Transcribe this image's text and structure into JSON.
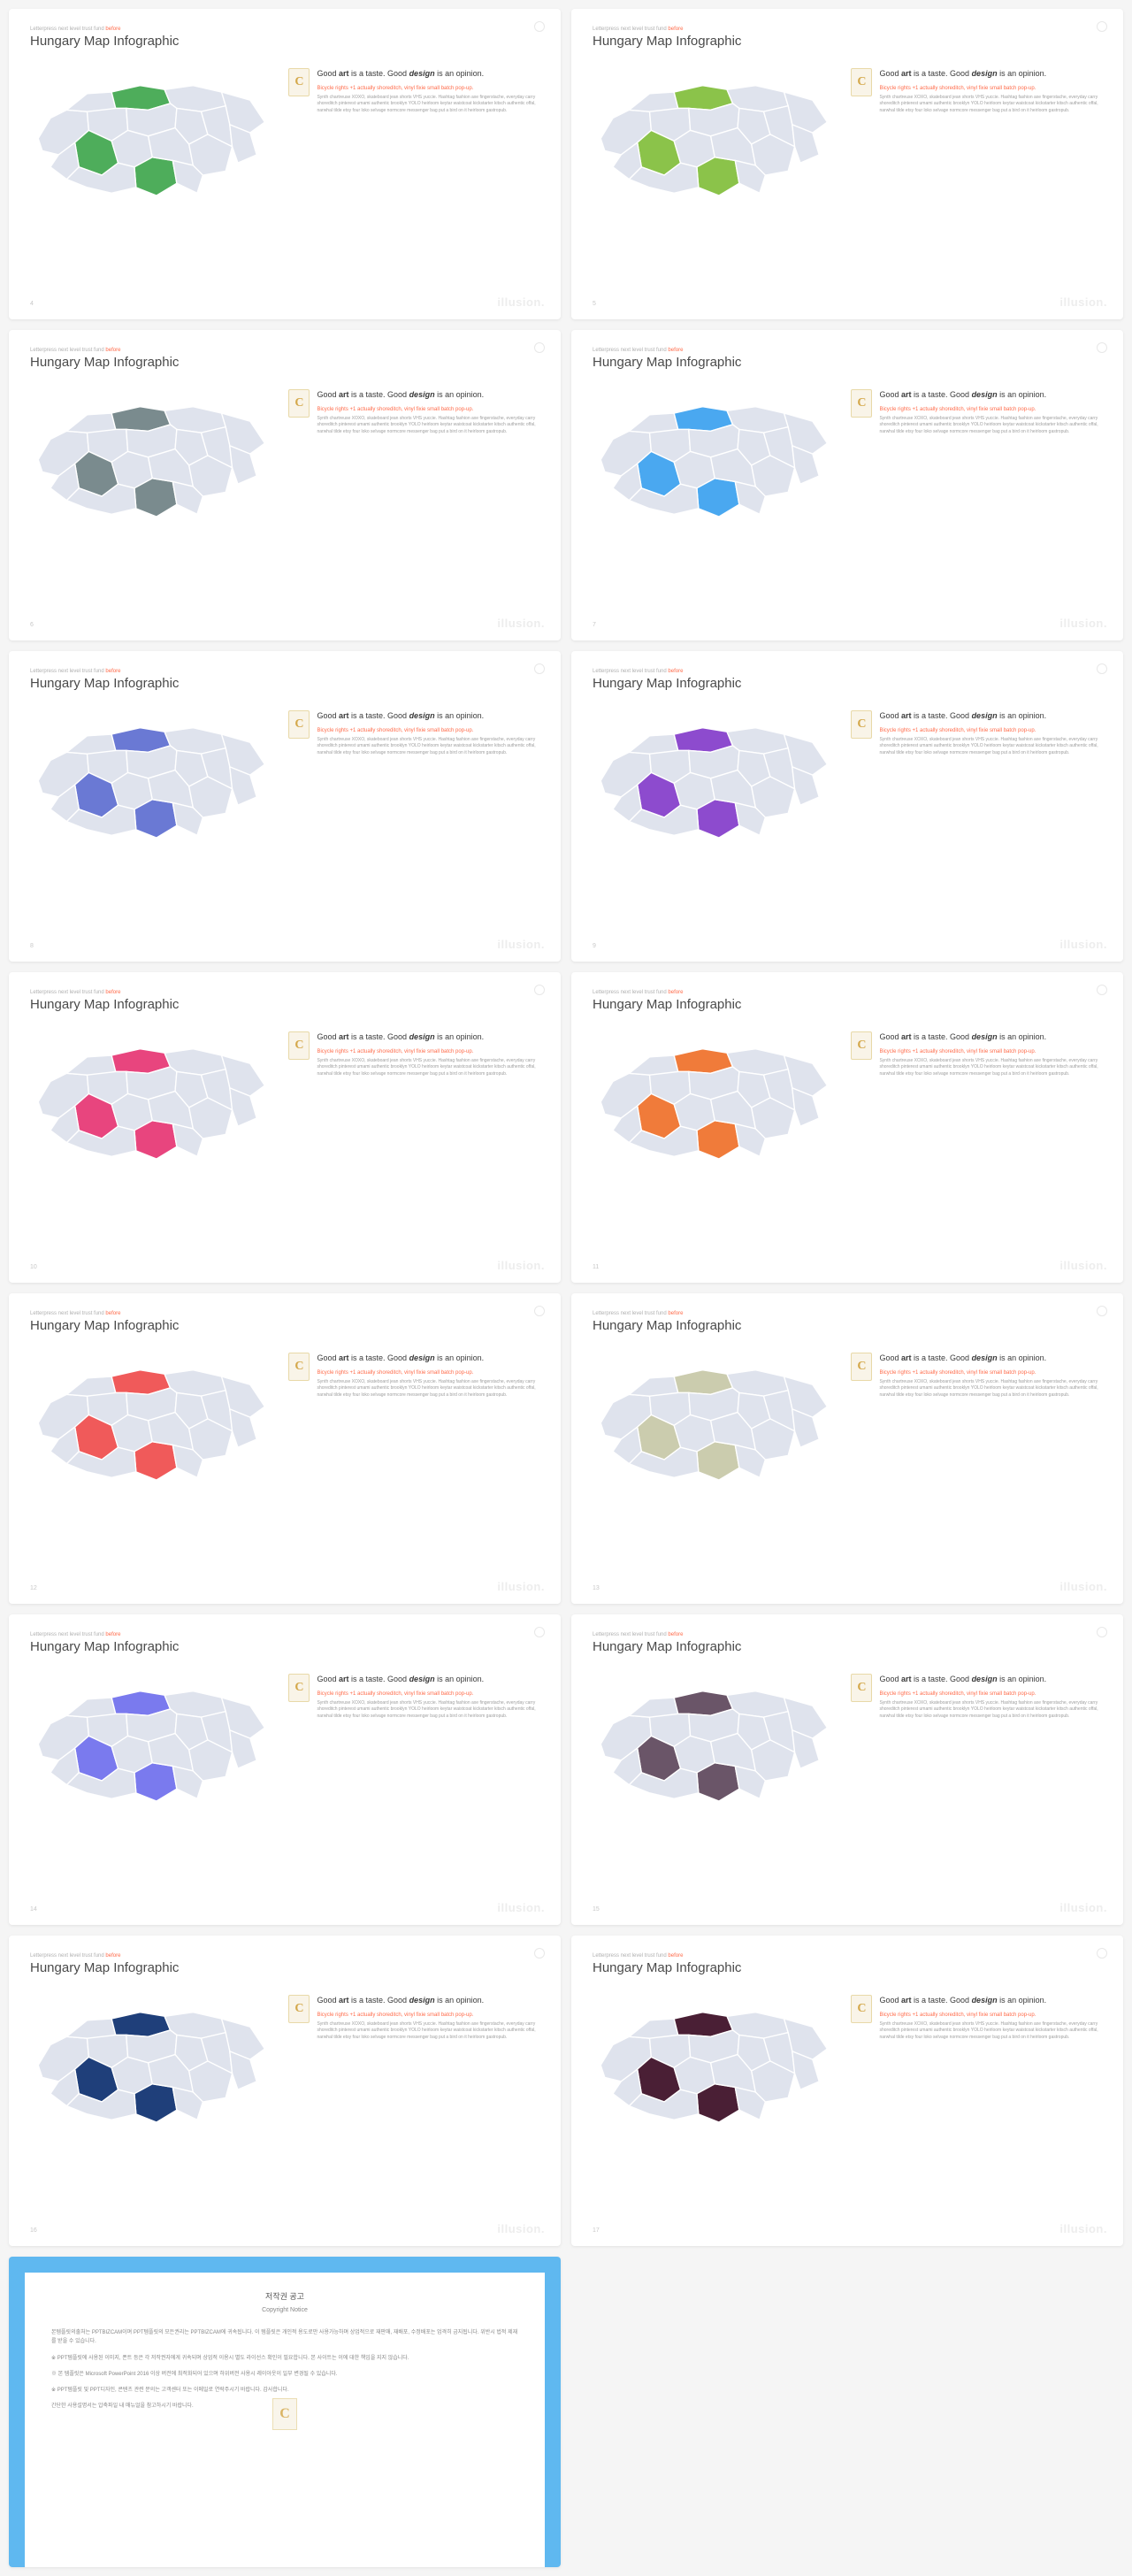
{
  "common": {
    "pretitle_plain": "Letterpress next level trust fund ",
    "pretitle_accent": "before",
    "title": "Hungary Map Infographic",
    "badge": "C",
    "headline_html": "Good <b>art</b> is a taste. Good <i>design</i> is an opinion.",
    "subhead": "Bicycle rights +1 actually shoreditch, vinyl fixie small batch pop-up.",
    "bodytext": "Synth chartreuse XOXO, skateboard jean shorts VHS yuccie. Hashtag fashion axe fingerstache, everyday carry shoreditch pinterest umami authentic brooklyn YOLO heirloom keytar waistcoat kickstarter kitsch authentic offal, narwhal tilde etsy four loko selvage normcore messenger bag put a bird on it heirloom gastropub.",
    "watermark": "illusion.",
    "base_fill": "#dfe3ed"
  },
  "slides": [
    {
      "page": "4",
      "highlight": "#4ead5b"
    },
    {
      "page": "5",
      "highlight": "#8bc34a"
    },
    {
      "page": "6",
      "highlight": "#7a8b8e"
    },
    {
      "page": "7",
      "highlight": "#4aa8f0"
    },
    {
      "page": "8",
      "highlight": "#6a79d4"
    },
    {
      "page": "9",
      "highlight": "#8d4bce"
    },
    {
      "page": "10",
      "highlight": "#e8457e"
    },
    {
      "page": "11",
      "highlight": "#f07b3a"
    },
    {
      "page": "12",
      "highlight": "#f05a5a"
    },
    {
      "page": "13",
      "highlight": "#cbccae"
    },
    {
      "page": "14",
      "highlight": "#7a7aee"
    },
    {
      "page": "15",
      "highlight": "#6a5568"
    },
    {
      "page": "16",
      "highlight": "#1f3f7a"
    },
    {
      "page": "17",
      "highlight": "#4a1f35"
    }
  ],
  "copyright": {
    "title_ko": "저작권 공고",
    "title_en": "Copyright Notice",
    "p1": "본템플릿의출처는 PPTBIZCAM이며 PPT템플릿의 모든권리는 PPTBIZCAM에 귀속됩니다. 이 템플릿은 개인적 용도로만 사용가능하며 상업적으로 재판매, 재배포, 수정배포는 엄격히 금지됩니다. 위반시 법적 제재를 받을 수 있습니다.",
    "p2": "※ PPT템플릿에 사용된 이미지, 폰트 등은 각 저작권자에게 귀속되며 상업적 이용시 별도 라이선스 확인이 필요합니다. 본 사이트는 이에 대한 책임을 지지 않습니다.",
    "p3": "※ 본 템플릿은 Microsoft PowerPoint 2016 이상 버전에 최적화되어 있으며 하위버전 사용시 레이아웃이 일부 변경될 수 있습니다.",
    "p4": "※ PPT템플릿 및 PPT디자인, 콘텐츠 관련 문의는 고객센터 또는 이메일로 연락주시기 바랍니다. 감사합니다.",
    "p5": "간단한 사용설명서는 압축파일 내 매뉴얼을 참고하시기 바랍니다."
  }
}
